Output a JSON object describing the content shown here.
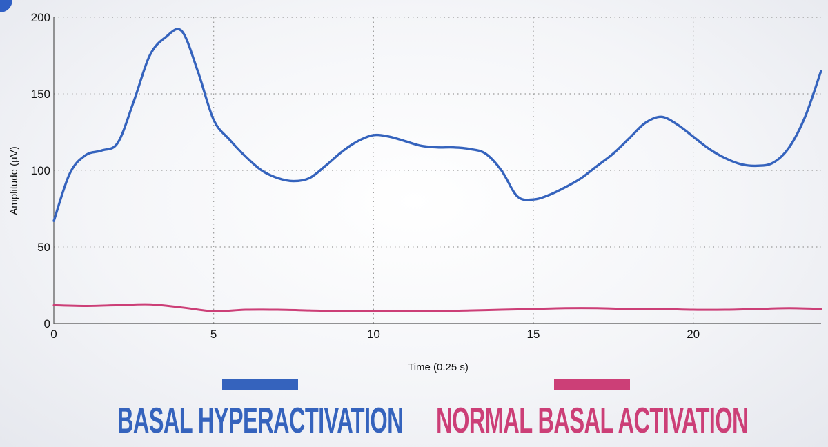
{
  "colors": {
    "hyper": "#3563bd",
    "normal": "#cc3f77",
    "grid": "#9a9a9a",
    "axis": "#555555"
  },
  "chart_data": {
    "type": "line",
    "title": "",
    "xlabel": "Time (0.25 s)",
    "ylabel": "Amplitude (µV)",
    "xlim": [
      0,
      24
    ],
    "ylim": [
      0,
      200
    ],
    "xticks": [
      0,
      5,
      10,
      15,
      20
    ],
    "yticks": [
      0,
      50,
      100,
      150,
      200
    ],
    "grid": true,
    "legend_placement": "bottom",
    "series": [
      {
        "name": "BASAL HYPERACTIVATION",
        "color": "#3563bd",
        "x": [
          0,
          0.5,
          1,
          1.5,
          2,
          2.5,
          3,
          3.5,
          4,
          4.5,
          5,
          5.5,
          6,
          6.5,
          7,
          7.5,
          8,
          8.5,
          9,
          9.5,
          10,
          10.5,
          11,
          11.5,
          12,
          12.5,
          13,
          13.5,
          14,
          14.5,
          15,
          15.5,
          16,
          16.5,
          17,
          17.5,
          18,
          18.5,
          19,
          19.5,
          20,
          20.5,
          21,
          21.5,
          22,
          22.5,
          23,
          23.5,
          24
        ],
        "y": [
          67,
          98,
          110,
          113,
          118,
          145,
          175,
          187,
          191,
          165,
          133,
          120,
          109,
          100,
          95,
          93,
          95,
          103,
          112,
          119,
          123,
          122,
          119,
          116,
          115,
          115,
          114,
          111,
          100,
          83,
          81,
          84,
          89,
          95,
          103,
          111,
          121,
          131,
          135,
          130,
          122,
          114,
          108,
          104,
          103,
          105,
          115,
          135,
          165
        ]
      },
      {
        "name": "NORMAL BASAL ACTIVATION",
        "color": "#cc3f77",
        "x": [
          0,
          1,
          2,
          3,
          4,
          5,
          6,
          7,
          8,
          9,
          10,
          11,
          12,
          13,
          14,
          15,
          16,
          17,
          18,
          19,
          20,
          21,
          22,
          23,
          24
        ],
        "y": [
          12,
          11.5,
          12,
          12.5,
          10.5,
          8,
          9,
          9,
          8.5,
          8,
          8,
          8,
          8,
          8.5,
          9,
          9.5,
          10,
          10,
          9.5,
          9.5,
          9,
          9,
          9.5,
          10,
          9.5
        ]
      }
    ]
  }
}
